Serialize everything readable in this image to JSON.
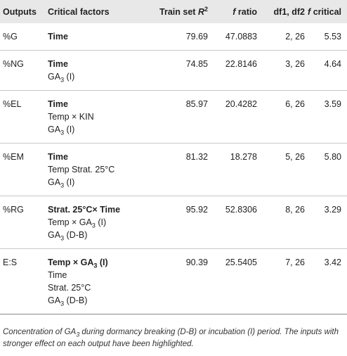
{
  "header": {
    "outputs": "Outputs",
    "critical_factors": "Critical factors",
    "train_set": "Train set",
    "r": "R",
    "r_sup": "2",
    "f": "f",
    "ratio": "ratio",
    "df": "df1, df2",
    "critical": "critical"
  },
  "rows": [
    {
      "output": "%G",
      "factors": [
        {
          "text": "Time",
          "bold": true
        }
      ],
      "r2": "79.69",
      "f_ratio": "47.0883",
      "df": "2, 26",
      "f_critical": "5.53"
    },
    {
      "output": "%NG",
      "factors": [
        {
          "text": "Time",
          "bold": true
        },
        {
          "pre": "GA",
          "sub": "3",
          "post": " (I)",
          "bold": false
        }
      ],
      "r2": "74.85",
      "f_ratio": "22.8146",
      "df": "3, 26",
      "f_critical": "4.64"
    },
    {
      "output": "%EL",
      "factors": [
        {
          "text": "Time",
          "bold": true
        },
        {
          "text": "Temp × KIN",
          "bold": false
        },
        {
          "pre": "GA",
          "sub": "3",
          "post": " (I)",
          "bold": false
        }
      ],
      "r2": "85.97",
      "f_ratio": "20.4282",
      "df": "6, 26",
      "f_critical": "3.59"
    },
    {
      "output": "%EM",
      "factors": [
        {
          "text": "Time",
          "bold": true
        },
        {
          "text": "Temp Strat. 25°C",
          "bold": false
        },
        {
          "pre": "GA",
          "sub": "3",
          "post": " (I)",
          "bold": false
        }
      ],
      "r2": "81.32",
      "f_ratio": "18.278",
      "df": "5, 26",
      "f_critical": "5.80"
    },
    {
      "output": "%RG",
      "factors": [
        {
          "text": "Strat. 25°C× Time",
          "bold": true
        },
        {
          "pre": "Temp × GA",
          "sub": "3",
          "post": " (I)",
          "bold": false
        },
        {
          "pre": "GA",
          "sub": "3",
          "post": " (D-B)",
          "bold": false
        }
      ],
      "r2": "95.92",
      "f_ratio": "52.8306",
      "df": "8, 26",
      "f_critical": "3.29"
    },
    {
      "output": "E:S",
      "factors": [
        {
          "pre": "Temp × GA",
          "sub": "3",
          "post": " (I)",
          "bold": true
        },
        {
          "text": "Time",
          "bold": false
        },
        {
          "text": "Strat. 25°C",
          "bold": false
        },
        {
          "pre": "GA",
          "sub": "3",
          "post": " (D-B)",
          "bold": false
        }
      ],
      "r2": "90.39",
      "f_ratio": "25.5405",
      "df": "7, 26",
      "f_critical": "3.42"
    }
  ],
  "footnote": {
    "pre": "Concentration of GA",
    "sub": "3",
    "post": " during dormancy breaking (D-B) or incubation (I) period. The inputs with stronger effect on each output have been highlighted."
  }
}
